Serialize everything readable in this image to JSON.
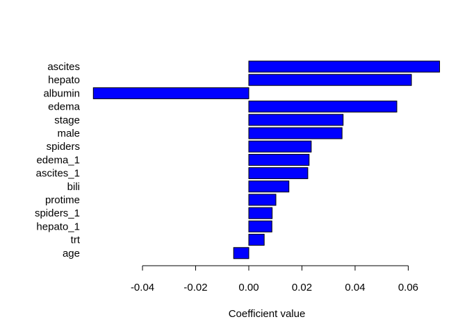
{
  "chart_data": {
    "type": "bar",
    "orientation": "horizontal",
    "title": "",
    "xlabel": "Coefficient value",
    "ylabel": "",
    "categories": [
      "ascites",
      "hepato",
      "albumin",
      "edema",
      "stage",
      "male",
      "spiders",
      "edema_1",
      "ascites_1",
      "bili",
      "protime",
      "spiders_1",
      "hepato_1",
      "trt",
      "age"
    ],
    "values": [
      0.0718,
      0.0612,
      -0.0585,
      0.0557,
      0.0355,
      0.0351,
      0.0235,
      0.0227,
      0.0222,
      0.0151,
      0.0102,
      0.0088,
      0.0087,
      0.0058,
      -0.0057
    ],
    "xticks": [
      -0.04,
      -0.02,
      0.0,
      0.02,
      0.04,
      0.06
    ],
    "xtick_labels": [
      "-0.04",
      "-0.02",
      "0.00",
      "0.02",
      "0.04",
      "0.06"
    ],
    "xlim": [
      -0.0585,
      0.0718
    ],
    "grid": false,
    "legend": "none",
    "bar_color": "#0000ff",
    "bar_border_color": "#000000"
  }
}
